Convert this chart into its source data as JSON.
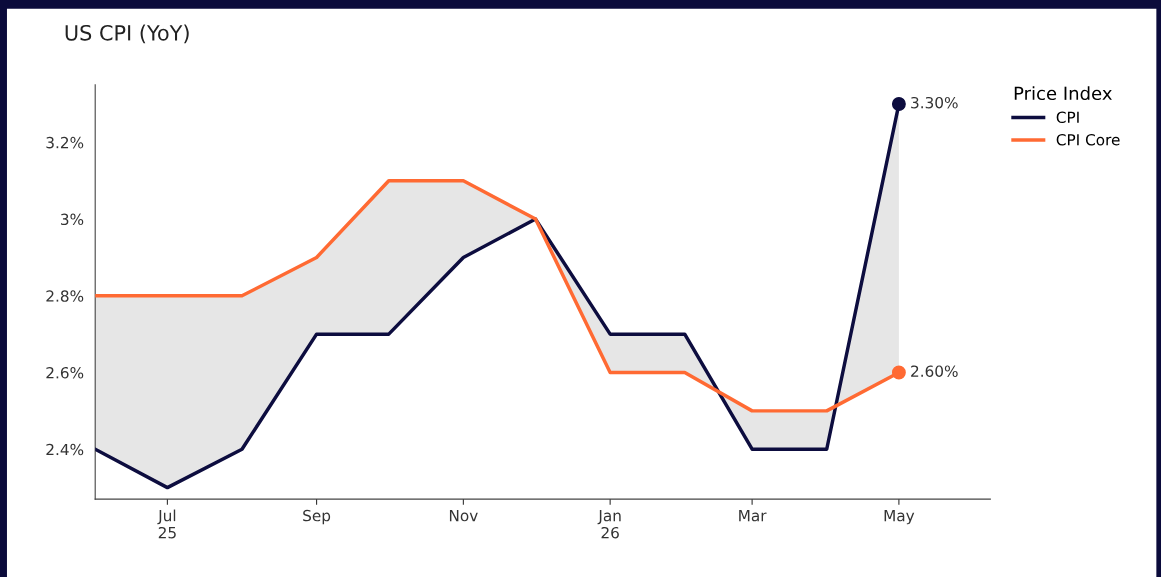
{
  "chart_data": {
    "type": "line",
    "title": "US CPI (YoY)",
    "legend_title": "Price Index",
    "legend": "top right",
    "grid": false,
    "marker": "none",
    "x": [
      "2025-06",
      "2025-07",
      "2025-08",
      "2025-09",
      "2025-10",
      "2025-11",
      "2025-12",
      "2026-01",
      "2026-02",
      "2026-03",
      "2026-04",
      "2026-05"
    ],
    "series": [
      {
        "name": "CPI",
        "color": "#0d0d3f",
        "values": [
          2.4,
          2.3,
          2.4,
          2.7,
          2.7,
          2.9,
          3.0,
          2.7,
          2.7,
          2.4,
          2.4,
          3.3
        ],
        "lower": [
          2.4,
          2.3,
          2.4,
          2.7,
          2.7,
          2.9,
          3.0,
          2.7,
          2.7,
          2.4,
          2.4,
          3.3
        ],
        "upper": [
          2.8,
          2.8,
          2.8,
          2.9,
          3.1,
          3.1,
          3.0,
          2.6,
          2.6,
          2.5,
          2.5,
          2.6
        ],
        "value_labels": [
          null,
          null,
          null,
          null,
          null,
          null,
          null,
          null,
          null,
          null,
          null,
          "3.30%"
        ]
      },
      {
        "name": "CPI Core",
        "color": "#ff6a33",
        "values": [
          2.8,
          2.8,
          2.8,
          2.9,
          3.1,
          3.1,
          3.0,
          2.6,
          2.6,
          2.5,
          2.5,
          2.6
        ],
        "value_labels": [
          null,
          null,
          null,
          null,
          null,
          null,
          null,
          null,
          null,
          null,
          null,
          "2.60%"
        ]
      }
    ],
    "xlim": [
      "2025-06",
      "2026-06-08"
    ],
    "xticks": [
      {
        "value": "2025-07",
        "label": "Jul\n25"
      },
      {
        "value": "2025-09",
        "label": "Sep"
      },
      {
        "value": "2025-11",
        "label": "Nov"
      },
      {
        "value": "2026-01",
        "label": "Jan\n26"
      },
      {
        "value": "2026-03",
        "label": "Mar"
      },
      {
        "value": "2026-05",
        "label": "May"
      }
    ],
    "ylim": [
      2.27,
      3.35
    ],
    "yticks": [
      {
        "value": 2.4,
        "label": "2.4%"
      },
      {
        "value": 2.6,
        "label": "2.6%"
      },
      {
        "value": 2.8,
        "label": "2.8%"
      },
      {
        "value": 3.0,
        "label": "3%"
      },
      {
        "value": 3.2,
        "label": "3.2%"
      }
    ]
  }
}
